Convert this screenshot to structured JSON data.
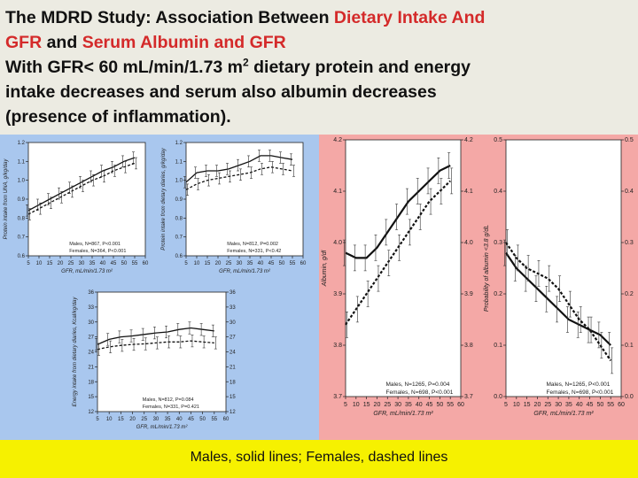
{
  "header": {
    "line1_a": "The MDRD Study: Association Between ",
    "line1_b": "Dietary Intake And",
    "line2_a": "GFR",
    "line2_b": " and ",
    "line2_c": "Serum Albumin and GFR",
    "line3_a": "With GFR< 60 mL/min/1.73 m",
    "line3_sup": "2",
    "line3_b": " dietary protein and energy",
    "line4": "intake decreases and serum also albumin decreases",
    "line5": "(presence of inflammation)."
  },
  "footer": {
    "caption": "Males, solid lines; Females, dashed lines"
  },
  "colors": {
    "left_panel": "#a9c7ee",
    "right_panel": "#f4a8a6",
    "footer": "#f6f100",
    "header_accent": "#d42a2a"
  },
  "chart_data": [
    {
      "id": "protein-dpi",
      "type": "line",
      "xlabel": "GFR, mL/min/1.73 m²",
      "ylabel": "Protein intake from UNA, g/kg/day",
      "xlim": [
        5,
        60
      ],
      "ylim": [
        0.6,
        1.2
      ],
      "xticks": [
        "5",
        "10",
        "15",
        "20",
        "25",
        "30",
        "35",
        "40",
        "45",
        "50",
        "55",
        "60"
      ],
      "yticks": [
        "0.6",
        "0.7",
        "0.8",
        "0.9",
        "1.0",
        "1.1",
        "1.2"
      ],
      "legend": [
        "Males, N=867, P<0.001",
        "Females, N=364, P<0.001"
      ],
      "x": [
        5,
        10,
        15,
        20,
        25,
        30,
        35,
        40,
        45,
        50,
        55
      ],
      "series": [
        {
          "name": "Males",
          "dash": false,
          "values": [
            0.84,
            0.87,
            0.9,
            0.93,
            0.96,
            0.99,
            1.02,
            1.05,
            1.07,
            1.1,
            1.12
          ]
        },
        {
          "name": "Females",
          "dash": true,
          "values": [
            0.82,
            0.85,
            0.88,
            0.91,
            0.94,
            0.97,
            1.0,
            1.02,
            1.05,
            1.07,
            1.09
          ]
        }
      ]
    },
    {
      "id": "protein-diary",
      "type": "line",
      "xlabel": "GFR, mL/min/1.73 m²",
      "ylabel": "Protein intake from dietary diaries, g/kg/day",
      "xlim": [
        5,
        60
      ],
      "ylim": [
        0.6,
        1.2
      ],
      "xticks": [
        "5",
        "10",
        "15",
        "20",
        "25",
        "30",
        "35",
        "40",
        "45",
        "50",
        "55",
        "60"
      ],
      "yticks": [
        "0.6",
        "0.7",
        "0.8",
        "0.9",
        "1.0",
        "1.1",
        "1.2"
      ],
      "legend": [
        "Males, N=812, P=0.002",
        "Females, N=331, P<0.42"
      ],
      "x": [
        5,
        10,
        15,
        20,
        25,
        30,
        35,
        40,
        45,
        50,
        55
      ],
      "series": [
        {
          "name": "Males",
          "dash": false,
          "values": [
            0.99,
            1.04,
            1.05,
            1.05,
            1.06,
            1.08,
            1.1,
            1.13,
            1.13,
            1.12,
            1.11
          ]
        },
        {
          "name": "Females",
          "dash": true,
          "values": [
            0.95,
            0.98,
            1.0,
            1.01,
            1.02,
            1.03,
            1.04,
            1.06,
            1.07,
            1.06,
            1.05
          ]
        }
      ]
    },
    {
      "id": "energy",
      "type": "line",
      "xlabel": "GFR, mL/min/1.73 m²",
      "ylabel": "Energy intake from dietary diaries, Kcal/kg/day",
      "xlim": [
        5,
        60
      ],
      "ylim": [
        12,
        36
      ],
      "xticks": [
        "5",
        "10",
        "15",
        "20",
        "25",
        "30",
        "35",
        "40",
        "45",
        "50",
        "55",
        "60"
      ],
      "yticks": [
        "12",
        "15",
        "18",
        "21",
        "24",
        "27",
        "30",
        "33",
        "36"
      ],
      "legend": [
        "Males, N=812, P=0.084",
        "Females, N=331, P=0.421"
      ],
      "x": [
        5,
        10,
        15,
        20,
        25,
        30,
        35,
        40,
        45,
        50,
        55
      ],
      "series": [
        {
          "name": "Males",
          "dash": false,
          "values": [
            25.5,
            26.5,
            27.0,
            27.2,
            27.5,
            27.8,
            28.0,
            28.5,
            28.8,
            28.5,
            28.2
          ]
        },
        {
          "name": "Females",
          "dash": true,
          "values": [
            24.5,
            25.0,
            25.3,
            25.5,
            25.6,
            25.8,
            26.0,
            26.0,
            26.2,
            26.0,
            25.8
          ]
        }
      ]
    },
    {
      "id": "albumin",
      "type": "line",
      "xlabel": "GFR, mL/min/1.73 m²",
      "ylabel": "Albumin, g/dl",
      "xlim": [
        5,
        60
      ],
      "ylim": [
        3.7,
        4.2
      ],
      "xticks": [
        "5",
        "10",
        "15",
        "20",
        "25",
        "30",
        "35",
        "40",
        "45",
        "50",
        "55",
        "60"
      ],
      "yticks": [
        "3.7",
        "3.8",
        "3.9",
        "4.0",
        "4.1",
        "4.2"
      ],
      "legend": [
        "Males, N=1265, P=0.004",
        "Females, N=698, P<0.001"
      ],
      "x": [
        5,
        10,
        15,
        20,
        25,
        30,
        35,
        40,
        45,
        50,
        55
      ],
      "series": [
        {
          "name": "Males",
          "dash": false,
          "values": [
            3.98,
            3.97,
            3.97,
            3.99,
            4.02,
            4.05,
            4.08,
            4.1,
            4.12,
            4.14,
            4.15
          ]
        },
        {
          "name": "Females",
          "dash": true,
          "values": [
            3.84,
            3.87,
            3.9,
            3.93,
            3.96,
            3.99,
            4.02,
            4.05,
            4.08,
            4.1,
            4.12
          ]
        }
      ]
    },
    {
      "id": "prob-albumin",
      "type": "line",
      "xlabel": "GFR, mL/min/1.73 m²",
      "ylabel": "Probability of albumin <3.8 g/dL",
      "xlim": [
        5,
        60
      ],
      "ylim": [
        0.0,
        0.5
      ],
      "xticks": [
        "5",
        "10",
        "15",
        "20",
        "25",
        "30",
        "35",
        "40",
        "45",
        "50",
        "55",
        "60"
      ],
      "yticks": [
        "0.0",
        "0.1",
        "0.2",
        "0.3",
        "0.4",
        "0.5"
      ],
      "legend": [
        "Males, N=1265, P<0.001",
        "Females, N=698, P<0.001"
      ],
      "x": [
        5,
        10,
        15,
        20,
        25,
        30,
        35,
        40,
        45,
        50,
        55
      ],
      "series": [
        {
          "name": "Males",
          "dash": false,
          "values": [
            0.28,
            0.25,
            0.23,
            0.21,
            0.19,
            0.17,
            0.15,
            0.14,
            0.13,
            0.12,
            0.1
          ]
        },
        {
          "name": "Females",
          "dash": true,
          "values": [
            0.3,
            0.27,
            0.25,
            0.24,
            0.23,
            0.21,
            0.18,
            0.15,
            0.13,
            0.1,
            0.07
          ]
        }
      ]
    }
  ]
}
